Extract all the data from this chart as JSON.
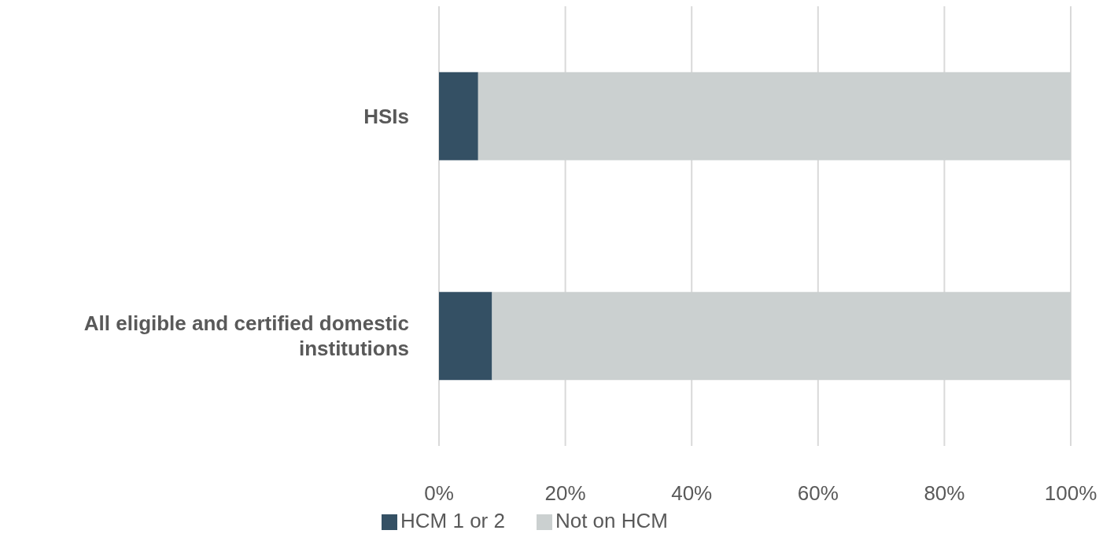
{
  "chart_data": {
    "type": "bar",
    "orientation": "horizontal",
    "stacked": true,
    "categories": [
      "HSIs",
      "All eligible and certified domestic institutions"
    ],
    "series": [
      {
        "name": "HCM 1 or 2",
        "color": "#345064",
        "values": [
          6.2,
          8.4
        ]
      },
      {
        "name": "Not on HCM",
        "color": "#cbd0d0",
        "values": [
          93.8,
          91.6
        ]
      }
    ],
    "xlim": [
      0,
      100
    ],
    "xticks": [
      {
        "value": 0,
        "label": "0%"
      },
      {
        "value": 20,
        "label": "20%"
      },
      {
        "value": 40,
        "label": "40%"
      },
      {
        "value": 60,
        "label": "60%"
      },
      {
        "value": 80,
        "label": "80%"
      },
      {
        "value": 100,
        "label": "100%"
      }
    ],
    "grid": "x",
    "legend": "bottom"
  }
}
